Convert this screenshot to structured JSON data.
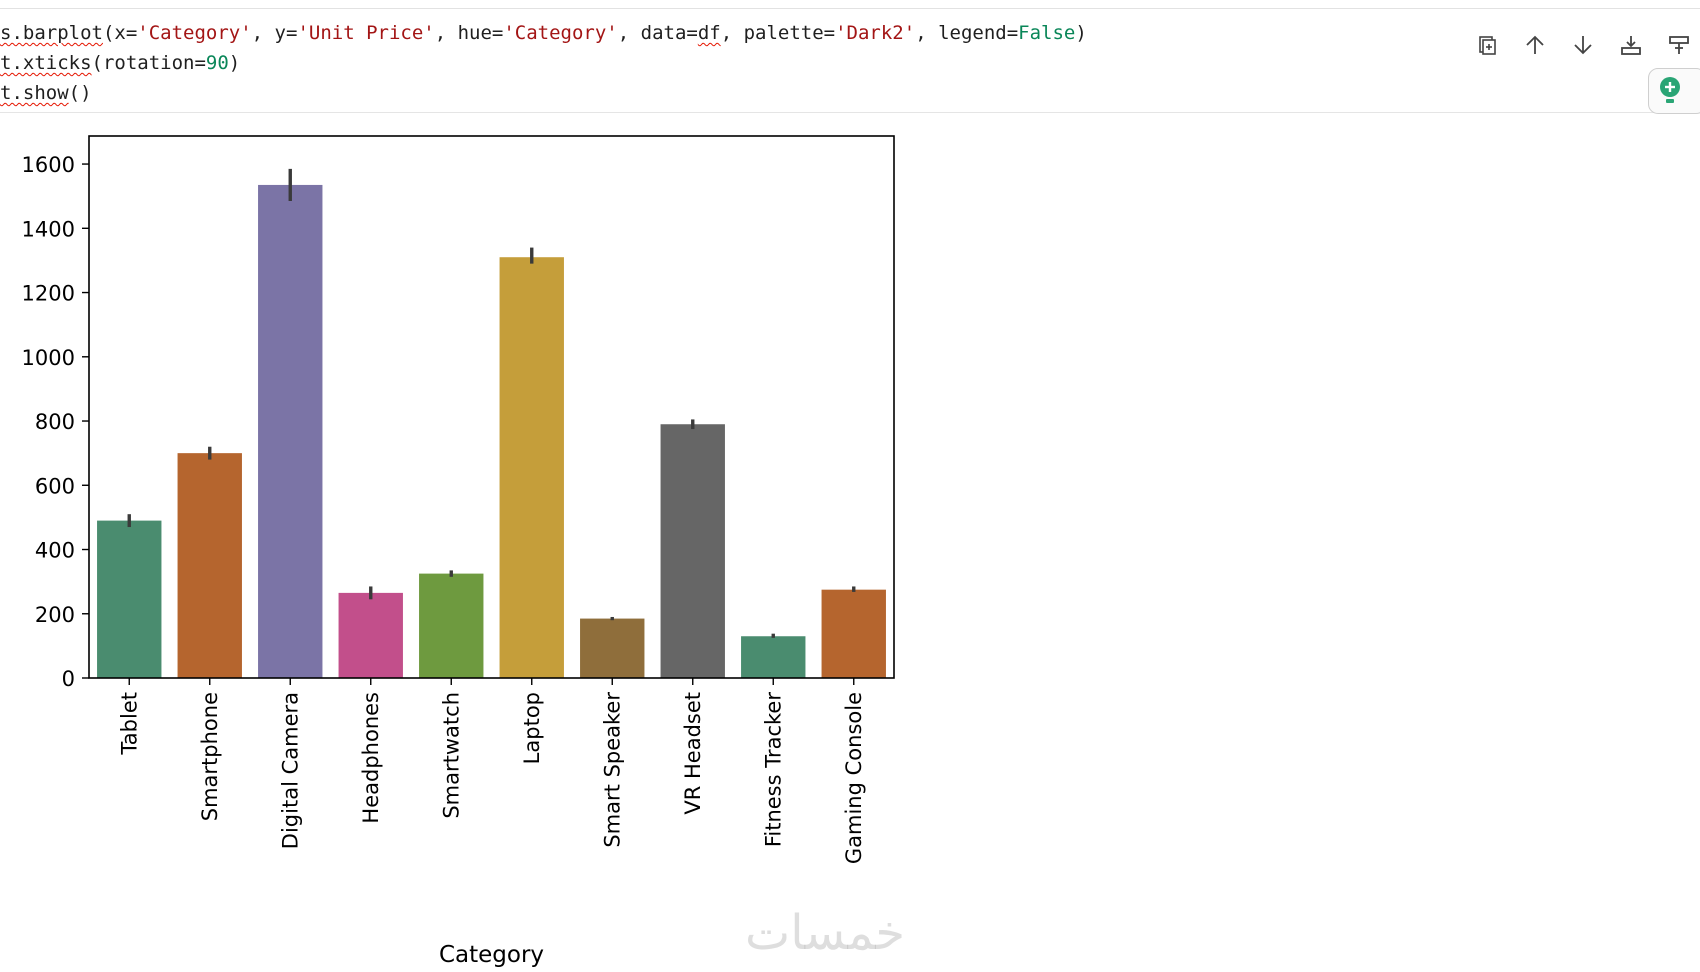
{
  "code": {
    "lines": [
      [
        {
          "t": "s.barplot",
          "c": "squiggle"
        },
        {
          "t": "(x=",
          "c": "tok-op"
        },
        {
          "t": "'Category'",
          "c": "tok-str"
        },
        {
          "t": ", y=",
          "c": "tok-op"
        },
        {
          "t": "'Unit Price'",
          "c": "tok-str"
        },
        {
          "t": ", hue=",
          "c": "tok-op"
        },
        {
          "t": "'Category'",
          "c": "tok-str"
        },
        {
          "t": ", data=",
          "c": "tok-op"
        },
        {
          "t": "df",
          "c": "squiggle"
        },
        {
          "t": ", palette=",
          "c": "tok-op"
        },
        {
          "t": "'Dark2'",
          "c": "tok-str"
        },
        {
          "t": ", legend=",
          "c": "tok-op"
        },
        {
          "t": "False",
          "c": "tok-num"
        },
        {
          "t": ")",
          "c": "tok-op"
        }
      ],
      [
        {
          "t": "t.xticks",
          "c": "squiggle"
        },
        {
          "t": "(rotation=",
          "c": "tok-op"
        },
        {
          "t": "90",
          "c": "tok-num"
        },
        {
          "t": ")",
          "c": "tok-op"
        }
      ],
      [
        {
          "t": "t.show",
          "c": "squiggle"
        },
        {
          "t": "()",
          "c": "tok-op"
        }
      ]
    ]
  },
  "toolbar": {
    "buttons": [
      {
        "name": "split-cell-icon"
      },
      {
        "name": "move-up-icon"
      },
      {
        "name": "move-down-icon"
      },
      {
        "name": "insert-below-icon"
      },
      {
        "name": "delete-cell-icon"
      }
    ]
  },
  "side_badge": {
    "icon": "lightbulb-icon"
  },
  "watermark": {
    "text": "خمسات"
  },
  "colors": {
    "axis": "#000000",
    "errorbar": "#3a3a3a"
  },
  "chart_data": {
    "type": "bar",
    "title": "",
    "xlabel": "Category",
    "ylabel": "",
    "ylim": [
      0,
      1650
    ],
    "yticks": [
      0,
      200,
      400,
      600,
      800,
      1000,
      1200,
      1400,
      1600
    ],
    "categories": [
      "Tablet",
      "Smartphone",
      "Digital Camera",
      "Headphones",
      "Smartwatch",
      "Laptop",
      "Smart Speaker",
      "VR Headset",
      "Fitness Tracker",
      "Gaming Console"
    ],
    "values": [
      490,
      700,
      1535,
      265,
      325,
      1310,
      185,
      790,
      130,
      275
    ],
    "error_low": [
      470,
      680,
      1485,
      245,
      315,
      1290,
      180,
      775,
      125,
      268
    ],
    "error_high": [
      510,
      720,
      1585,
      285,
      335,
      1340,
      190,
      805,
      138,
      285
    ],
    "colors": [
      "#4a8c6f",
      "#b5652e",
      "#7b74a6",
      "#c24f8b",
      "#6e9a3f",
      "#c59e3a",
      "#8f6e3b",
      "#666666",
      "#4a8c6f",
      "#b5652e"
    ],
    "grid": false,
    "legend": false
  }
}
